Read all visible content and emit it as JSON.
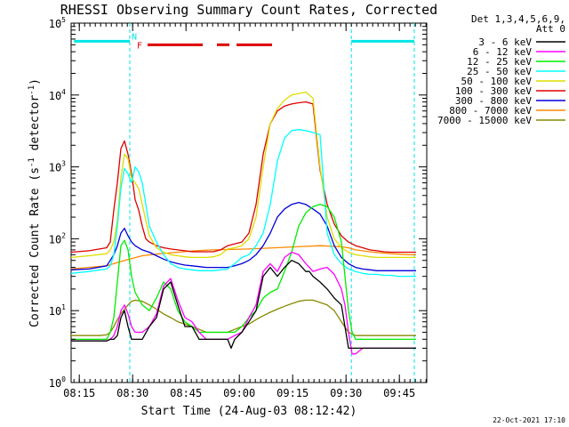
{
  "chart_data": {
    "type": "line",
    "title": "RHESSI Observing Summary Count Rates, Corrected",
    "xlabel": "Start Time (24-Aug-03 08:12:42)",
    "ylabel": "Corrected Count Rate (s⁻¹ detector⁻¹)",
    "ylabel_parts": {
      "main": "Corrected Count Rate (s",
      "sup1": "-1",
      "mid": " detector",
      "sup2": "-1",
      "end": ")"
    },
    "yscale": "log",
    "xlim": [
      0,
      100
    ],
    "ylim": [
      1,
      100000
    ],
    "x_ticks": [
      {
        "label": "08:15",
        "value": 2.3
      },
      {
        "label": "08:30",
        "value": 17.3
      },
      {
        "label": "08:45",
        "value": 32.3
      },
      {
        "label": "09:00",
        "value": 47.3
      },
      {
        "label": "09:15",
        "value": 62.3
      },
      {
        "label": "09:30",
        "value": 77.3
      },
      {
        "label": "09:45",
        "value": 92.3
      }
    ],
    "y_ticks": [
      {
        "base": "10",
        "exp": "0",
        "value": 1
      },
      {
        "base": "10",
        "exp": "1",
        "value": 10
      },
      {
        "base": "10",
        "exp": "2",
        "value": 100
      },
      {
        "base": "10",
        "exp": "3",
        "value": 1000
      },
      {
        "base": "10",
        "exp": "4",
        "value": 10000
      },
      {
        "base": "10",
        "exp": "5",
        "value": 100000
      }
    ],
    "legend_header": [
      "Det 1,3,4,5,6,9,",
      "Att 0"
    ],
    "annotations": {
      "night_label": "N",
      "flare_label": "F",
      "footer_date": "22-Oct-2021 17:10"
    },
    "night_bars": [
      [
        0.8,
        16.5
      ],
      [
        78.8,
        96.5
      ]
    ],
    "night_level": 56000,
    "flare_bars": [
      [
        21.5,
        37.0
      ],
      [
        41.0,
        44.5
      ],
      [
        46.5,
        56.5
      ]
    ],
    "flare_level": 50000,
    "vlines": [
      16.5,
      78.8,
      96.5
    ],
    "series": [
      {
        "name": "3 - 6 keV",
        "color": "#000000",
        "x": [
          0,
          9,
          10,
          11,
          12,
          13,
          14,
          15,
          16,
          17,
          18,
          20,
          22,
          24,
          26,
          28,
          30,
          32,
          34,
          36,
          38,
          40,
          42,
          44,
          45,
          46,
          48,
          50,
          52,
          54,
          56,
          58,
          60,
          62,
          64,
          66,
          67,
          68,
          70,
          72,
          74,
          76,
          77,
          78,
          79,
          80,
          82,
          84,
          86,
          88,
          90,
          92,
          94,
          96,
          97
        ],
        "y": [
          3.8,
          3.8,
          3.8,
          4,
          4,
          4.5,
          8,
          10,
          6,
          4,
          4,
          4,
          6,
          8,
          20,
          25,
          12,
          6,
          6,
          4,
          4,
          4,
          4,
          4,
          3,
          4,
          5,
          7,
          10,
          30,
          40,
          30,
          40,
          50,
          45,
          35,
          35,
          30,
          25,
          20,
          15,
          12,
          6,
          3,
          3,
          3,
          3,
          3,
          3,
          3,
          3,
          3,
          3,
          3,
          3
        ]
      },
      {
        "name": "6 - 12 keV",
        "color": "#ff00ff",
        "x": [
          0,
          9,
          10,
          11,
          12,
          13,
          14,
          15,
          16,
          17,
          18,
          20,
          22,
          24,
          26,
          28,
          30,
          32,
          34,
          36,
          38,
          40,
          42,
          44,
          46,
          48,
          50,
          52,
          54,
          56,
          58,
          60,
          62,
          64,
          66,
          67,
          68,
          70,
          72,
          74,
          76,
          77,
          78,
          79,
          80,
          82,
          84,
          86,
          88,
          90,
          92,
          94,
          96,
          97
        ],
        "y": [
          3.8,
          3.8,
          3.8,
          4,
          4.5,
          6,
          10,
          12,
          9,
          6,
          5,
          5,
          6,
          9,
          22,
          28,
          14,
          8,
          7,
          5,
          4,
          4,
          4,
          4,
          4.5,
          5,
          8,
          12,
          35,
          45,
          35,
          55,
          65,
          60,
          45,
          40,
          35,
          38,
          40,
          32,
          20,
          12,
          5,
          2.5,
          2.5,
          3,
          3,
          3,
          3,
          3,
          3,
          3,
          3,
          3
        ]
      },
      {
        "name": "12 - 25 keV",
        "color": "#00ee00",
        "x": [
          0,
          9,
          10,
          11,
          12,
          13,
          14,
          15,
          16,
          17,
          18,
          20,
          22,
          24,
          26,
          28,
          30,
          32,
          34,
          36,
          38,
          40,
          42,
          44,
          46,
          48,
          50,
          52,
          54,
          56,
          58,
          60,
          62,
          64,
          66,
          68,
          70,
          72,
          74,
          76,
          77,
          78,
          79,
          80,
          82,
          84,
          86,
          88,
          90,
          92,
          94,
          96,
          97
        ],
        "y": [
          4,
          4,
          4,
          5,
          8,
          25,
          80,
          95,
          70,
          30,
          18,
          12,
          10,
          15,
          25,
          20,
          10,
          7,
          6,
          5,
          5,
          5,
          5,
          5,
          5,
          6,
          8,
          10,
          15,
          18,
          20,
          35,
          65,
          150,
          230,
          280,
          300,
          280,
          200,
          90,
          30,
          10,
          5,
          4,
          4,
          4,
          4,
          4,
          4,
          4,
          4,
          4,
          4
        ]
      },
      {
        "name": "25 - 50 keV",
        "color": "#00ffff",
        "x": [
          0,
          5,
          10,
          11,
          12,
          13,
          14,
          15,
          16,
          17,
          18,
          19,
          20,
          21,
          22,
          24,
          26,
          28,
          30,
          32,
          34,
          36,
          38,
          40,
          42,
          44,
          46,
          48,
          50,
          52,
          54,
          56,
          58,
          60,
          62,
          64,
          66,
          68,
          70,
          72,
          74,
          76,
          78,
          80,
          82,
          84,
          86,
          88,
          90,
          92,
          94,
          96,
          97
        ],
        "y": [
          33,
          35,
          38,
          42,
          60,
          150,
          500,
          950,
          800,
          600,
          1000,
          850,
          600,
          300,
          150,
          90,
          60,
          45,
          40,
          38,
          37,
          36,
          36,
          36,
          37,
          38,
          45,
          55,
          60,
          80,
          120,
          300,
          1200,
          2500,
          3200,
          3300,
          3200,
          3000,
          2800,
          120,
          60,
          45,
          38,
          35,
          33,
          32,
          32,
          31,
          31,
          30,
          30,
          30,
          30
        ]
      },
      {
        "name": "50 - 100 keV",
        "color": "#dddd00",
        "x": [
          0,
          5,
          10,
          11,
          12,
          13,
          14,
          15,
          16,
          17,
          18,
          19,
          20,
          21,
          22,
          24,
          26,
          28,
          30,
          32,
          34,
          36,
          38,
          40,
          42,
          44,
          46,
          48,
          50,
          52,
          54,
          56,
          58,
          60,
          62,
          64,
          66,
          68,
          70,
          72,
          74,
          76,
          78,
          80,
          82,
          84,
          86,
          88,
          90,
          92,
          94,
          96,
          97
        ],
        "y": [
          55,
          58,
          62,
          70,
          90,
          180,
          700,
          1500,
          1300,
          700,
          600,
          500,
          300,
          180,
          110,
          75,
          65,
          60,
          58,
          56,
          55,
          55,
          55,
          56,
          60,
          72,
          75,
          80,
          100,
          200,
          1000,
          4000,
          6500,
          8500,
          10000,
          10500,
          11000,
          9000,
          1000,
          200,
          100,
          75,
          65,
          60,
          58,
          56,
          55,
          55,
          55,
          55,
          55,
          55,
          55
        ]
      },
      {
        "name": "100 - 300 keV",
        "color": "#dd0000",
        "x": [
          0,
          5,
          10,
          11,
          12,
          13,
          14,
          15,
          16,
          17,
          18,
          19,
          20,
          21,
          22,
          24,
          26,
          28,
          30,
          32,
          34,
          36,
          38,
          40,
          42,
          44,
          46,
          48,
          50,
          52,
          54,
          56,
          58,
          60,
          62,
          64,
          66,
          68,
          70,
          72,
          74,
          76,
          78,
          80,
          82,
          84,
          86,
          88,
          90,
          92,
          94,
          96,
          97
        ],
        "y": [
          65,
          68,
          75,
          90,
          250,
          600,
          1800,
          2300,
          1500,
          800,
          350,
          250,
          150,
          100,
          90,
          80,
          75,
          72,
          70,
          68,
          66,
          66,
          66,
          66,
          70,
          80,
          85,
          90,
          120,
          300,
          1500,
          4000,
          6000,
          7000,
          7500,
          7800,
          8000,
          7500,
          900,
          300,
          160,
          110,
          90,
          80,
          75,
          70,
          68,
          66,
          65,
          65,
          65,
          65,
          65
        ]
      },
      {
        "name": "300 - 800 keV",
        "color": "#0000dd",
        "x": [
          0,
          5,
          10,
          11,
          12,
          13,
          14,
          15,
          16,
          17,
          18,
          20,
          22,
          24,
          26,
          28,
          30,
          32,
          34,
          36,
          38,
          40,
          42,
          44,
          46,
          48,
          50,
          52,
          54,
          56,
          58,
          60,
          62,
          64,
          66,
          68,
          70,
          72,
          74,
          76,
          78,
          80,
          82,
          84,
          86,
          88,
          90,
          92,
          94,
          96,
          97
        ],
        "y": [
          37,
          38,
          42,
          50,
          60,
          80,
          120,
          140,
          110,
          90,
          80,
          70,
          65,
          58,
          52,
          48,
          45,
          43,
          42,
          41,
          40,
          40,
          40,
          40,
          42,
          45,
          50,
          60,
          80,
          120,
          200,
          260,
          300,
          320,
          300,
          260,
          220,
          150,
          80,
          55,
          45,
          40,
          38,
          37,
          36,
          36,
          36,
          36,
          36,
          36,
          36
        ]
      },
      {
        "name": "800 - 7000 keV",
        "color": "#ff8800",
        "x": [
          0,
          10,
          15,
          20,
          25,
          30,
          35,
          40,
          45,
          50,
          55,
          60,
          65,
          70,
          75,
          78,
          80,
          85,
          90,
          95,
          97
        ],
        "y": [
          38,
          42,
          50,
          58,
          62,
          65,
          68,
          70,
          71,
          72,
          74,
          76,
          78,
          80,
          78,
          75,
          70,
          65,
          62,
          60,
          60
        ]
      },
      {
        "name": "7000 - 15000 keV",
        "color": "#888800",
        "x": [
          0,
          8,
          10,
          11,
          12,
          13,
          14,
          15,
          16,
          17,
          18,
          20,
          22,
          24,
          26,
          28,
          30,
          32,
          34,
          36,
          38,
          40,
          42,
          44,
          46,
          48,
          50,
          52,
          54,
          56,
          58,
          60,
          62,
          64,
          66,
          68,
          70,
          72,
          74,
          76,
          78,
          80,
          82,
          84,
          86,
          88,
          90,
          92,
          94,
          96,
          97
        ],
        "y": [
          4.5,
          4.5,
          4.6,
          5,
          6,
          7.5,
          9,
          10.5,
          12,
          13.5,
          14,
          13.5,
          12,
          10.5,
          9,
          8,
          7,
          6.5,
          6,
          5.5,
          5,
          5,
          5,
          5,
          5.5,
          6,
          6.5,
          7.5,
          8.5,
          9.5,
          10.5,
          11.5,
          12.5,
          13.5,
          14,
          14,
          13,
          12,
          10,
          7,
          5,
          4.5,
          4.5,
          4.5,
          4.5,
          4.5,
          4.5,
          4.5,
          4.5,
          4.5,
          4.5
        ]
      }
    ]
  }
}
